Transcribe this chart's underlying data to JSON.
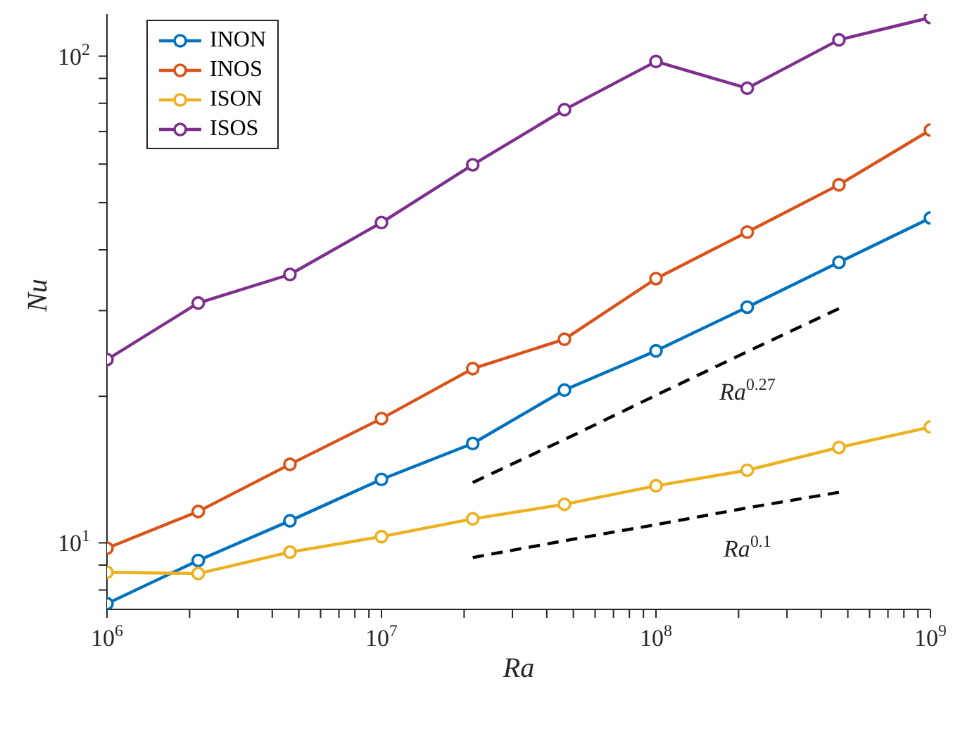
{
  "chart_data": {
    "type": "line",
    "xlabel": "Ra",
    "ylabel": "Nu",
    "log": "xy",
    "marker": "circle",
    "line_style": "solid",
    "legend": "top left",
    "grid": false,
    "x": [
      1000000,
      2150000,
      4640000,
      10000000,
      21500000,
      46400000,
      100000000,
      215000000,
      464000000,
      1000000000
    ],
    "xlim": [
      1000000,
      1000000000
    ],
    "xticks": [
      {
        "value": 1000000,
        "label": "10$^{6}$"
      },
      {
        "value": 2000000,
        "label": null
      },
      {
        "value": 3000000,
        "label": null
      },
      {
        "value": 4000000,
        "label": null
      },
      {
        "value": 5000000,
        "label": null
      },
      {
        "value": 6000000,
        "label": null
      },
      {
        "value": 7000000,
        "label": null
      },
      {
        "value": 8000000,
        "label": null
      },
      {
        "value": 9000000,
        "label": null
      },
      {
        "value": 10000000,
        "label": "10$^{7}$"
      },
      {
        "value": 20000000,
        "label": null
      },
      {
        "value": 30000000,
        "label": null
      },
      {
        "value": 40000000,
        "label": null
      },
      {
        "value": 50000000,
        "label": null
      },
      {
        "value": 60000000,
        "label": null
      },
      {
        "value": 70000000,
        "label": null
      },
      {
        "value": 80000000,
        "label": null
      },
      {
        "value": 90000000,
        "label": null
      },
      {
        "value": 100000000,
        "label": "10$^{8}$"
      },
      {
        "value": 200000000,
        "label": null
      },
      {
        "value": 300000000,
        "label": null
      },
      {
        "value": 400000000,
        "label": null
      },
      {
        "value": 500000000,
        "label": null
      },
      {
        "value": 600000000,
        "label": null
      },
      {
        "value": 700000000,
        "label": null
      },
      {
        "value": 800000000,
        "label": null
      },
      {
        "value": 900000000,
        "label": null
      },
      {
        "value": 1000000000,
        "label": "10$^{9}$"
      }
    ],
    "ylim": [
      7.3,
      122
    ],
    "yticks": [
      {
        "value": 8,
        "label": null
      },
      {
        "value": 9,
        "label": null
      },
      {
        "value": 10,
        "label": "10$^{1}$"
      },
      {
        "value": 20,
        "label": null
      },
      {
        "value": 30,
        "label": null
      },
      {
        "value": 40,
        "label": null
      },
      {
        "value": 50,
        "label": null
      },
      {
        "value": 60,
        "label": null
      },
      {
        "value": 70,
        "label": null
      },
      {
        "value": 80,
        "label": null
      },
      {
        "value": 90,
        "label": null
      },
      {
        "value": 100,
        "label": "10$^{2}$"
      }
    ],
    "series": [
      {
        "name": "INON",
        "color": "#0072bd",
        "values": [
          7.5,
          9.2,
          11.1,
          13.5,
          16.0,
          20.6,
          24.8,
          30.5,
          37.7,
          46.5
        ]
      },
      {
        "name": "INOS",
        "color": "#d95319",
        "values": [
          9.75,
          11.6,
          14.5,
          18.0,
          22.8,
          26.2,
          34.9,
          43.5,
          54.4,
          70.5
        ]
      },
      {
        "name": "ISON",
        "color": "#edb120",
        "values": [
          8.7,
          8.65,
          9.57,
          10.3,
          11.2,
          12.0,
          13.1,
          14.1,
          15.7,
          17.3
        ]
      },
      {
        "name": "ISOS",
        "color": "#7e2f8e",
        "values": [
          23.8,
          31.1,
          35.6,
          45.5,
          59.8,
          77.6,
          97.5,
          85.9,
          108,
          120
        ]
      },
      {
        "type": "line",
        "color": "#000000",
        "line_style": "dashed",
        "marker": "none",
        "values": [
          null,
          null,
          null,
          null,
          13.3,
          16.3,
          20.1,
          24.7,
          30.3,
          null
        ]
      },
      {
        "type": "line",
        "color": "#000000",
        "line_style": "dashed",
        "marker": "none",
        "values": [
          null,
          null,
          null,
          null,
          9.33,
          10.1,
          10.9,
          11.8,
          12.7,
          null
        ]
      }
    ],
    "annotations": [
      "Ra$^{0.27}$",
      "Ra$^{0.1}$"
    ]
  }
}
